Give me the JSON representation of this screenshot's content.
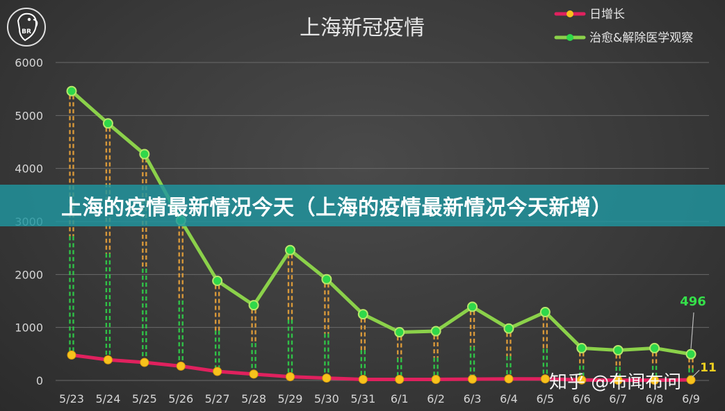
{
  "banner": {
    "text": "上海的疫情最新情况今天（上海的疫情最新情况今天新增）"
  },
  "watermark": {
    "text": "知乎 @布闻布问"
  },
  "logo": {
    "text": "BR"
  },
  "colors": {
    "green": "#8bd14a",
    "green_marker": "#2fd84a",
    "pink": "#e0215e",
    "yellow_marker": "#f7c21c",
    "drop_orange": "#e8a23a",
    "drop_green": "#2fd84a",
    "grid": "#6a6a6a",
    "text": "#d6d6d6"
  },
  "chart_data": {
    "type": "line",
    "title": "上海新冠疫情",
    "xlabel": "",
    "ylabel": "",
    "ylim": [
      0,
      6000
    ],
    "yticks": [
      "0",
      "1000",
      "2000",
      "3000",
      "4000",
      "5000",
      "6000"
    ],
    "legend_position": "top-right",
    "grid": true,
    "categories": [
      "5/23",
      "5/24",
      "5/25",
      "5/26",
      "5/27",
      "5/28",
      "5/29",
      "5/30",
      "5/31",
      "6/1",
      "6/2",
      "6/3",
      "6/4",
      "6/5",
      "6/6",
      "6/7",
      "6/8",
      "6/9"
    ],
    "series": [
      {
        "name": "日增长",
        "color": "#e0215e",
        "values": [
          480,
          390,
          340,
          270,
          170,
          120,
          70,
          45,
          20,
          20,
          20,
          25,
          30,
          30,
          10,
          5,
          5,
          11
        ]
      },
      {
        "name": "治愈&解除医学观察",
        "color": "#8bd14a",
        "values": [
          5460,
          4850,
          4270,
          3020,
          1880,
          1420,
          2460,
          1910,
          1250,
          910,
          930,
          1390,
          980,
          1290,
          610,
          570,
          610,
          496
        ]
      }
    ],
    "annotations": [
      {
        "label": "496",
        "category": "6/9",
        "series": "治愈&解除医学观察"
      },
      {
        "label": "11",
        "category": "6/9",
        "series": "日增长"
      }
    ]
  }
}
